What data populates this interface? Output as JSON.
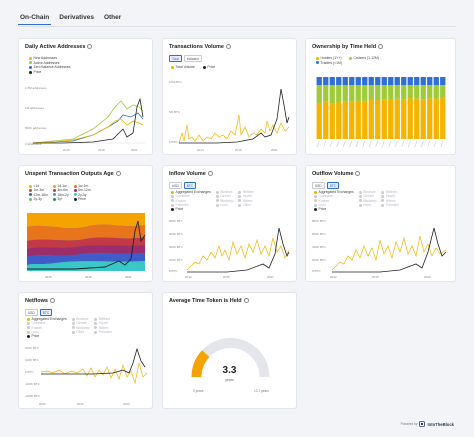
{
  "tabs": [
    "On-Chain",
    "Derivatives",
    "Other"
  ],
  "footer": {
    "powered_by": "Powered by",
    "brand": "IntoTheBlock"
  },
  "years": {
    "a": "2015",
    "b": "2018",
    "c": "2021",
    "d": "2014",
    "e": "2020",
    "f": "2019",
    "g": "2012",
    "h": "2022"
  },
  "units": {
    "btc": "BTC",
    "usd": "USD"
  },
  "cards": {
    "daa": {
      "title": "Daily Active Addresses",
      "legend": [
        "New Addresses",
        "Active Addresses",
        "Zero Balance Addresses",
        "Price"
      ],
      "y": [
        "1.5M addresses",
        "1M addresses",
        "500K addresses",
        "0 addresses"
      ]
    },
    "tv": {
      "title": "Transactions Volume",
      "toggle": [
        "Total",
        "Indicator"
      ],
      "legend": [
        "Total Volume",
        "Price"
      ],
      "y": [
        "10M BTC",
        "5M BTC",
        "0 BTC"
      ]
    },
    "own": {
      "title": "Ownership by Time Held",
      "legend": [
        "Holders (1Y+)",
        "Cruisers (1-12M)",
        "Traders (<1M)"
      ]
    },
    "utxo": {
      "title": "Unspent Transaction Outputs Age",
      "legend": [
        "<1d",
        "1d-1w",
        "1w-1m",
        "1m-3m",
        "3m-6m",
        "6m-12m",
        "12m-18m",
        "18m-2y",
        "2y-3y",
        "2y-3y",
        "3y+",
        "Price"
      ]
    },
    "inflow": {
      "title": "Inflow Volume",
      "toggle": [
        "USD",
        "BTC"
      ],
      "legend": [
        "Aggregated Exchanges",
        "Binance",
        "Bitfinex",
        "Coinbase",
        "Gemini",
        "Huobi",
        "Kraken",
        "Bitstamp",
        "Bittrex",
        "Poloniex",
        "Luno",
        "Okex",
        "Price"
      ],
      "y": [
        "800K BTC",
        "600K BTC",
        "400K BTC",
        "200K BTC",
        "0 BTC"
      ]
    },
    "outflow": {
      "title": "Outflow Volume",
      "toggle": [
        "USD",
        "BTC"
      ],
      "legend": [
        "Aggregated Exchanges",
        "Binance",
        "Bitfinex",
        "Coinbase",
        "Gemini",
        "Huobi",
        "Kraken",
        "Bitstamp",
        "Bittrex",
        "Luno",
        "Okex",
        "Poloniex",
        "Price"
      ],
      "y": [
        "800K BTC",
        "600K BTC",
        "400K BTC",
        "200K BTC",
        "0 BTC"
      ]
    },
    "netflows": {
      "title": "Netflows",
      "toggle": [
        "USD",
        "BTC"
      ],
      "legend": [
        "Aggregated Exchanges",
        "Binance",
        "Bitfinex",
        "Coinbase",
        "Gemini",
        "Huobi",
        "Kraken",
        "Bitstamp",
        "Bittrex",
        "Luno",
        "Okex",
        "Poloniex",
        "Price"
      ],
      "y": [
        "200K BTC",
        "100K BTC",
        "0 BTC",
        "-100K BTC",
        "-200K BTC"
      ]
    },
    "avg": {
      "title": "Average Time Token is Held",
      "value": "3.3",
      "unit": "years",
      "min": "0 years",
      "max": "13.7 years"
    }
  },
  "colors": {
    "yellow": "#f4b400",
    "green": "#9fcb3b",
    "blue": "#2f6fd6",
    "teal": "#39c7c7",
    "black": "#222222",
    "orange": "#f4a300"
  }
}
